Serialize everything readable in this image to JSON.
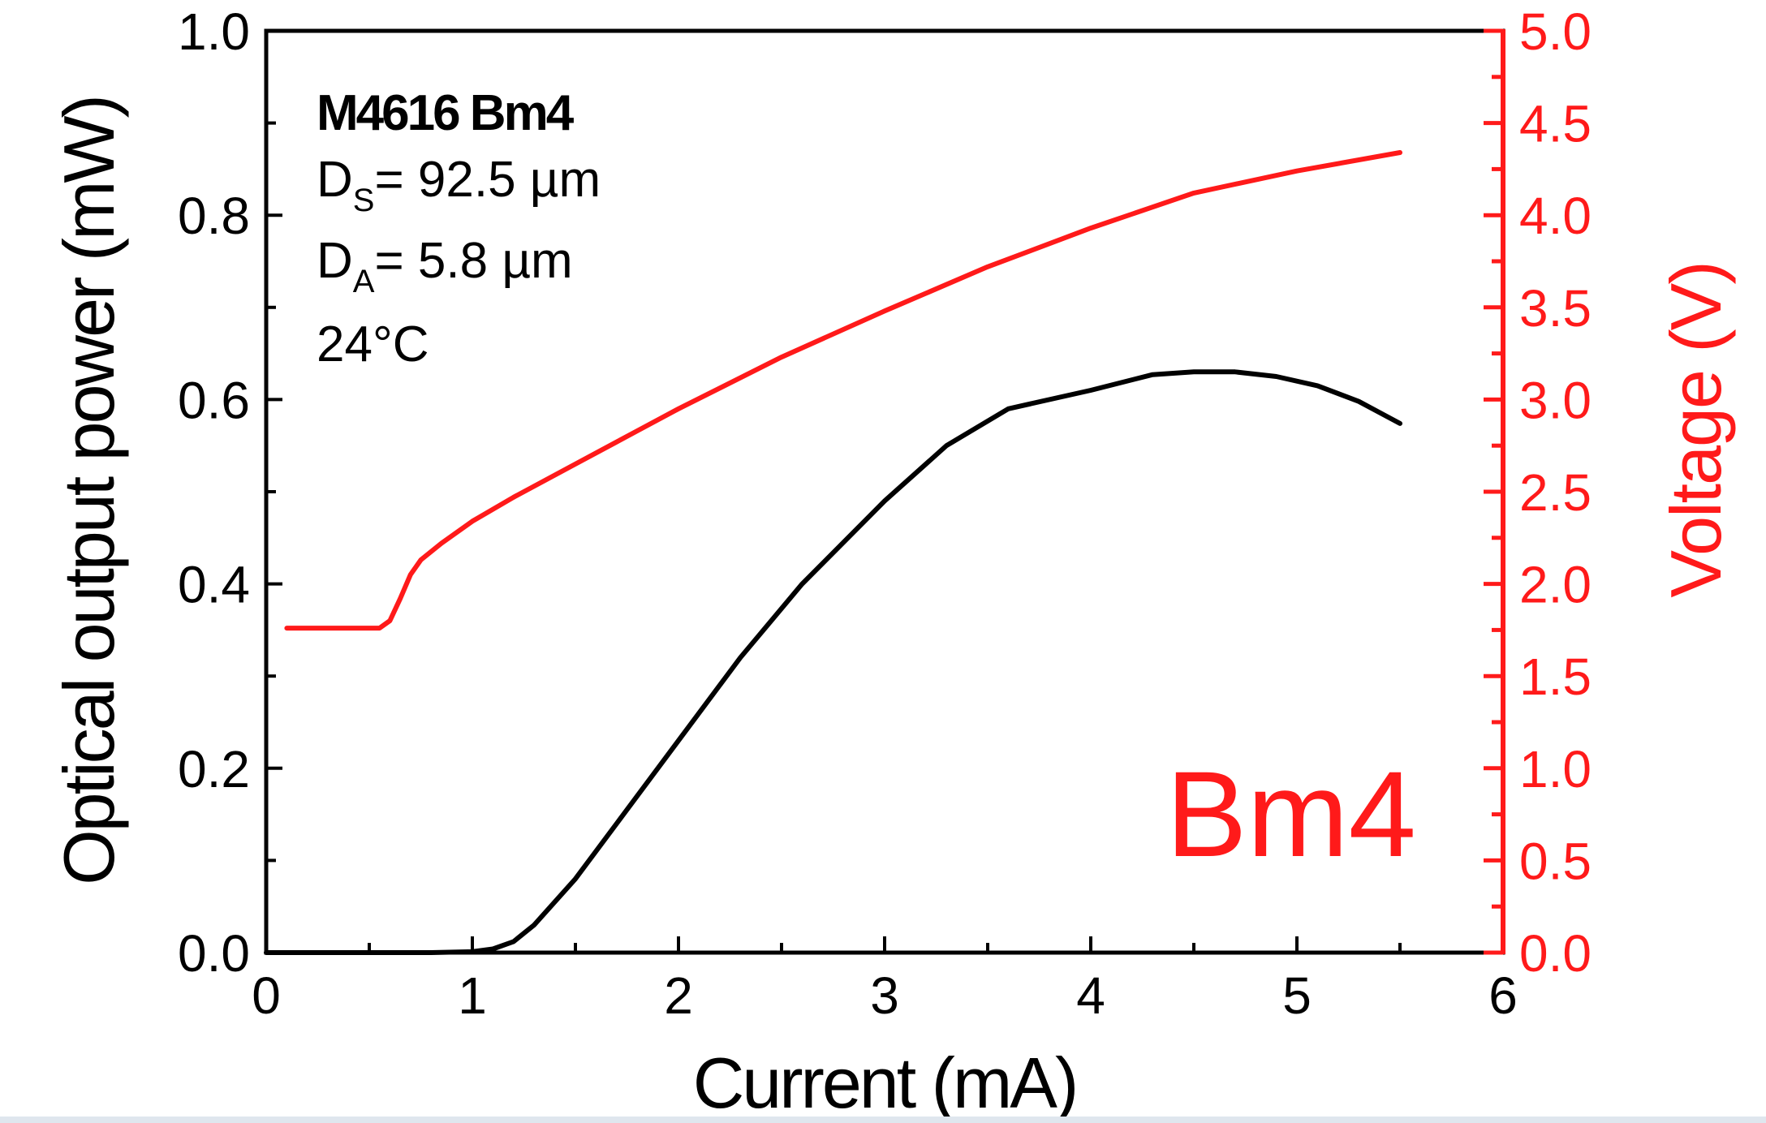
{
  "chart_data": {
    "type": "line",
    "xlabel": "Current (mA)",
    "ylabel_left": "Optical output power (mW)",
    "ylabel_right": "Voltage (V)",
    "xlim": [
      0,
      6
    ],
    "ylim_left": [
      0,
      1.0
    ],
    "ylim_right": [
      0,
      5.0
    ],
    "x_ticks": [
      "0",
      "1",
      "2",
      "3",
      "4",
      "5",
      "6"
    ],
    "y_left_ticks": [
      "0.0",
      "0.2",
      "0.4",
      "0.6",
      "0.8",
      "1.0"
    ],
    "y_right_ticks": [
      "0.0",
      "0.5",
      "1.0",
      "1.5",
      "2.0",
      "2.5",
      "3.0",
      "3.5",
      "4.0",
      "4.5",
      "5.0"
    ],
    "grid": false,
    "annotations": {
      "device": "M4616 Bm4",
      "ds_label": "D",
      "ds_sub": "S",
      "ds_value": "= 92.5 µm",
      "da_label": "D",
      "da_sub": "A",
      "da_value": "= 5.8 µm",
      "temperature": "24°C",
      "big_label": "Bm4"
    },
    "colors": {
      "power": "#000000",
      "voltage": "#ff1a1a",
      "axes": "#000000",
      "right_axis": "#ff1a1a"
    },
    "series": [
      {
        "axis": "left",
        "x": [
          0,
          0.5,
          0.8,
          1.0,
          1.1,
          1.2,
          1.3,
          1.5,
          1.7,
          2.0,
          2.3,
          2.6,
          3.0,
          3.3,
          3.6,
          4.0,
          4.3,
          4.5,
          4.7,
          4.9,
          5.1,
          5.3,
          5.5
        ],
        "values": [
          0.0,
          0.0,
          0.0,
          0.001,
          0.004,
          0.012,
          0.03,
          0.08,
          0.14,
          0.23,
          0.32,
          0.4,
          0.49,
          0.55,
          0.59,
          0.61,
          0.627,
          0.63,
          0.63,
          0.625,
          0.615,
          0.598,
          0.574
        ]
      },
      {
        "axis": "right",
        "x": [
          0.1,
          0.55,
          0.6,
          0.65,
          0.7,
          0.75,
          0.85,
          1.0,
          1.2,
          1.5,
          1.8,
          2.0,
          2.5,
          3.0,
          3.5,
          4.0,
          4.5,
          5.0,
          5.5
        ],
        "values": [
          1.76,
          1.76,
          1.8,
          1.92,
          2.05,
          2.13,
          2.22,
          2.34,
          2.47,
          2.65,
          2.83,
          2.95,
          3.23,
          3.48,
          3.72,
          3.93,
          4.12,
          4.24,
          4.34
        ]
      }
    ]
  }
}
